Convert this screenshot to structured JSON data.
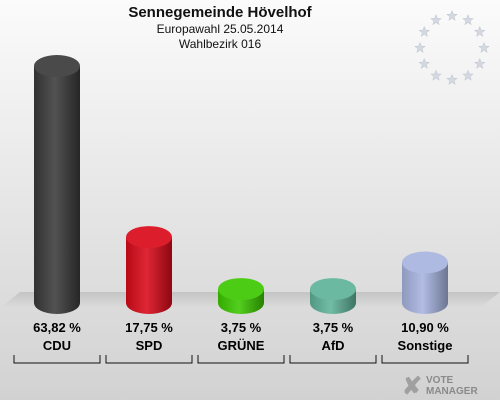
{
  "title": "Sennegemeinde Hövelhof",
  "subtitle_date": "Europawahl 25.05.2014",
  "subtitle_district": "Wahlbezirk 016",
  "watermark": {
    "line1": "VOTE",
    "line2": "MANAGER"
  },
  "colors": {
    "CDU": "#3a3a3a",
    "SPD": "#d90a1a",
    "GRÜNE": "#3cc800",
    "AfD": "#5fb39a",
    "Sonstige": "#a8b4e0"
  },
  "chart_data": {
    "type": "bar",
    "categories": [
      "CDU",
      "SPD",
      "GRÜNE",
      "AfD",
      "Sonstige"
    ],
    "values": [
      63.82,
      17.75,
      3.75,
      3.75,
      10.9
    ],
    "value_labels": [
      "63,82 %",
      "17,75 %",
      "3,75 %",
      "3,75 %",
      "10,90 %"
    ],
    "unit": "%",
    "ylim": [
      0,
      63.82
    ],
    "grid": false
  }
}
